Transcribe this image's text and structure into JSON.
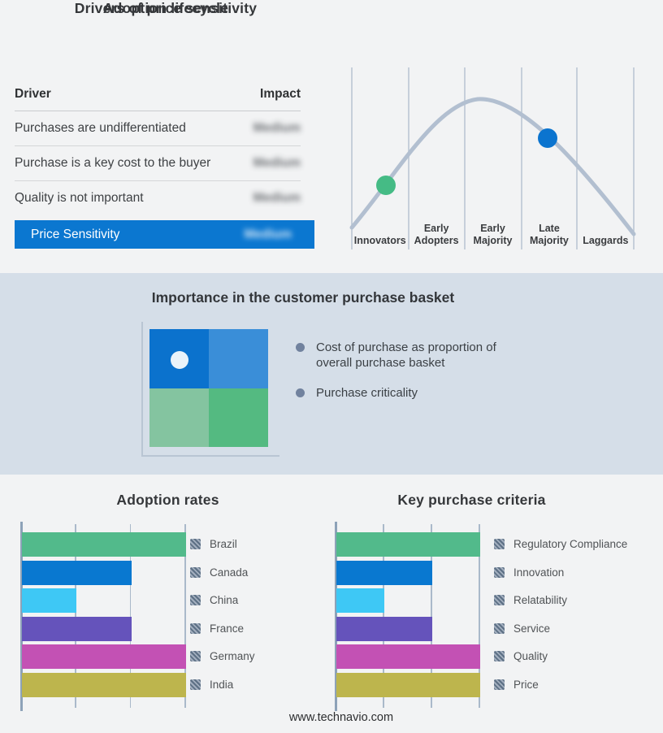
{
  "panels": {
    "drivers": {
      "title": "Drivers of price sensitivity",
      "columns": {
        "driver": "Driver",
        "impact": "Impact"
      },
      "impact_values_redacted": true,
      "rows": [
        {
          "driver": "Purchases are undifferentiated",
          "impact": "Medium"
        },
        {
          "driver": "Purchase is a key cost to the buyer",
          "impact": "Medium"
        },
        {
          "driver": "Quality is not important",
          "impact": "Medium"
        }
      ],
      "highlight": {
        "driver": "Price Sensitivity",
        "impact": "Medium",
        "background": "#0b77d0"
      }
    },
    "basket": {
      "title": "Importance in the customer purchase basket",
      "bullets": [
        "Cost of purchase as proportion of overall purchase basket",
        "Purchase criticality"
      ],
      "matrix": {
        "top_left": "#0b72cd",
        "top_right": "#3a8ed8",
        "bottom_left": "#84c4a0",
        "bottom_right": "#54ba81",
        "marker_quadrant": "top_left",
        "marker_color": "#eaf3fa"
      }
    }
  },
  "chart_data": [
    {
      "id": "lifecycle",
      "type": "line",
      "title": "Adoption lifecycle",
      "curve": "bell-shaped adoption curve",
      "categories": [
        "Innovators",
        "Early Adopters",
        "Early Majority",
        "Late Majority",
        "Laggards"
      ],
      "markers": [
        {
          "on_stage": "Innovators",
          "color": "#45bb85"
        },
        {
          "on_stage": "Late Majority",
          "color": "#0b74cf"
        }
      ],
      "grid": "vertical stage dividers",
      "legend_position": "none",
      "curve_color": "#b2bfd0"
    },
    {
      "id": "adoption_rates",
      "type": "bar",
      "orientation": "horizontal",
      "title": "Adoption rates",
      "categories": [
        "Brazil",
        "Canada",
        "China",
        "France",
        "Germany",
        "India"
      ],
      "values": [
        3,
        2,
        1,
        2,
        3,
        3
      ],
      "xlim": [
        0,
        3
      ],
      "gridline_count": 4,
      "tick_labels": "none shown",
      "bar_colors": [
        "#52ba8b",
        "#0978d0",
        "#3ec8f5",
        "#6553bb",
        "#c351b4",
        "#bdb54d"
      ],
      "legend_position": "right",
      "legend_swatch_style": "hatched"
    },
    {
      "id": "key_purchase_criteria",
      "type": "bar",
      "orientation": "horizontal",
      "title": "Key purchase criteria",
      "categories": [
        "Regulatory Compliance",
        "Innovation",
        "Relatability",
        "Service",
        "Quality",
        "Price"
      ],
      "values": [
        3,
        2,
        1,
        2,
        3,
        3
      ],
      "xlim": [
        0,
        3
      ],
      "gridline_count": 4,
      "tick_labels": "none shown",
      "bar_colors": [
        "#52ba8b",
        "#0978d0",
        "#3ec8f5",
        "#6553bb",
        "#c351b4",
        "#bdb54d"
      ],
      "legend_position": "right",
      "legend_swatch_style": "hatched"
    }
  ],
  "footer": {
    "website": "www.technavio.com"
  }
}
